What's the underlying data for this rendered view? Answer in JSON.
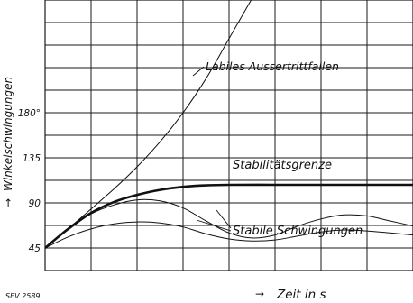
{
  "chart_data": {
    "type": "line",
    "ylabel": "Winkelschwingungen",
    "xlabel": "Zeit in  s",
    "figure_ref": "SEV 2589",
    "xlim": [
      0,
      16
    ],
    "ylim": [
      22.5,
      292.5
    ],
    "x_grid_count": 16,
    "y_ticks": [
      {
        "value": 45,
        "label": "45"
      },
      {
        "value": 90,
        "label": "90"
      },
      {
        "value": 135,
        "label": "135"
      },
      {
        "value": 180,
        "label": "180°"
      }
    ],
    "y_grid": [
      45,
      67.5,
      90,
      112.5,
      135,
      157.5,
      180,
      202.5,
      225,
      247.5,
      270
    ],
    "series": [
      {
        "key": "unstable",
        "x": [
          0,
          1,
          2,
          3,
          4,
          5,
          6,
          7,
          8,
          9
        ],
        "y": [
          45,
          64,
          84,
          104,
          126,
          151,
          180,
          214,
          254,
          294
        ]
      },
      {
        "key": "limit",
        "x": [
          0,
          1,
          2,
          3,
          4,
          5,
          6,
          7,
          8,
          10,
          12,
          14,
          16
        ],
        "y": [
          45,
          64,
          80,
          91,
          98,
          103,
          106,
          107.5,
          108,
          108,
          108,
          108,
          108
        ]
      },
      {
        "key": "stable1",
        "x": [
          0,
          1,
          2,
          3,
          4,
          5,
          6,
          7,
          8,
          9,
          10,
          11,
          12,
          13,
          14,
          15,
          16
        ],
        "y": [
          45,
          63,
          79,
          88,
          93,
          92,
          85,
          72,
          60,
          55,
          58,
          67,
          74,
          78,
          77,
          72,
          67
        ]
      },
      {
        "key": "stable2",
        "x": [
          0,
          1,
          2,
          3,
          4,
          5,
          6,
          7,
          8,
          9,
          10,
          11,
          12,
          13,
          14,
          15,
          16
        ],
        "y": [
          45,
          56,
          64,
          69,
          71,
          70,
          66,
          59,
          54,
          52,
          53,
          57,
          61,
          63,
          62,
          60,
          58
        ]
      }
    ],
    "annotations": [
      {
        "key": "unstable",
        "text": "Labiles Aussertrittfallen"
      },
      {
        "key": "limit",
        "text": "Stabilitätsgrenze"
      },
      {
        "key": "stable",
        "text": "Stabile Schwingungen"
      }
    ]
  }
}
